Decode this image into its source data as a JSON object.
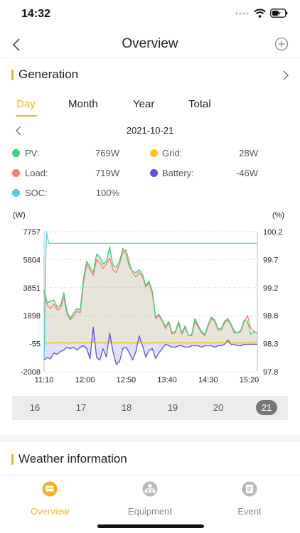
{
  "status_bar": {
    "time": "14:32"
  },
  "navbar": {
    "title": "Overview"
  },
  "generation": {
    "title": "Generation",
    "tabs": [
      "Day",
      "Month",
      "Year",
      "Total"
    ],
    "active_tab": "Day",
    "date": "2021-10-21",
    "legend": [
      {
        "label": "PV:",
        "value": "769W",
        "color": "#3ecf7a"
      },
      {
        "label": "Grid:",
        "value": "28W",
        "color": "#f5c518"
      },
      {
        "label": "Load:",
        "value": "719W",
        "color": "#ef7f7a"
      },
      {
        "label": "Battery:",
        "value": "-46W",
        "color": "#5b53e0"
      },
      {
        "label": "SOC:",
        "value": "100%",
        "color": "#4fd1d9"
      }
    ]
  },
  "chart_data": {
    "type": "line",
    "left_unit": "(W)",
    "right_unit": "(%)",
    "y_ticks_left": [
      "7757",
      "5804",
      "3851",
      "1898",
      "-55",
      "-2008"
    ],
    "y_ticks_right": [
      "100.2",
      "99.7",
      "99.2",
      "98.8",
      "98.3",
      "97.8"
    ],
    "ylim_left": [
      -2008,
      7757
    ],
    "ylim_right": [
      97.8,
      100.2
    ],
    "x_ticks": [
      "11:10",
      "12:00",
      "12:50",
      "13:40",
      "14:30",
      "15:20"
    ],
    "x_minutes_range": [
      "11:10",
      "15:30"
    ],
    "grid": true,
    "series": [
      {
        "name": "PV",
        "color": "#3ecf7a",
        "axis": "left",
        "x": [
          "11:10",
          "11:14",
          "11:18",
          "11:22",
          "11:26",
          "11:30",
          "11:34",
          "11:38",
          "11:42",
          "11:46",
          "11:50",
          "11:54",
          "11:58",
          "12:02",
          "12:06",
          "12:10",
          "12:14",
          "12:18",
          "12:22",
          "12:26",
          "12:30",
          "12:34",
          "12:38",
          "12:42",
          "12:46",
          "12:50",
          "12:54",
          "12:58",
          "13:02",
          "13:06",
          "13:10",
          "13:14",
          "13:18",
          "13:22",
          "13:26",
          "13:30",
          "13:34",
          "13:38",
          "13:42",
          "13:46",
          "13:50",
          "13:54",
          "13:58",
          "14:02",
          "14:06",
          "14:10",
          "14:14",
          "14:18",
          "14:22",
          "14:26",
          "14:30",
          "14:34",
          "14:38",
          "14:42",
          "14:46",
          "14:50",
          "14:54",
          "14:58",
          "15:02",
          "15:06",
          "15:10",
          "15:14",
          "15:18",
          "15:22",
          "15:26",
          "15:30"
        ],
        "values": [
          3700,
          2800,
          2900,
          3000,
          2500,
          2600,
          3500,
          2200,
          1700,
          2100,
          2400,
          2300,
          4500,
          5700,
          5300,
          4900,
          6200,
          6000,
          5500,
          5700,
          6700,
          5400,
          5300,
          5700,
          6600,
          6200,
          5300,
          5000,
          4900,
          5100,
          4800,
          4000,
          4300,
          3600,
          1800,
          2000,
          1600,
          1100,
          1500,
          700,
          800,
          1500,
          700,
          1200,
          500,
          600,
          1700,
          1200,
          800,
          600,
          1300,
          1800,
          1600,
          1000,
          1000,
          1500,
          1700,
          1300,
          800,
          700,
          900,
          1600,
          1500,
          600,
          800,
          700
        ]
      },
      {
        "name": "Load",
        "color": "#ef7f7a",
        "axis": "left",
        "x": [
          "11:10",
          "11:14",
          "11:18",
          "11:22",
          "11:26",
          "11:30",
          "11:34",
          "11:38",
          "11:42",
          "11:46",
          "11:50",
          "11:54",
          "11:58",
          "12:02",
          "12:06",
          "12:10",
          "12:14",
          "12:18",
          "12:22",
          "12:26",
          "12:30",
          "12:34",
          "12:38",
          "12:42",
          "12:46",
          "12:50",
          "12:54",
          "12:58",
          "13:02",
          "13:06",
          "13:10",
          "13:14",
          "13:18",
          "13:22",
          "13:26",
          "13:30",
          "13:34",
          "13:38",
          "13:42",
          "13:46",
          "13:50",
          "13:54",
          "13:58",
          "14:02",
          "14:06",
          "14:10",
          "14:14",
          "14:18",
          "14:22",
          "14:26",
          "14:30",
          "14:34",
          "14:38",
          "14:42",
          "14:46",
          "14:50",
          "14:54",
          "14:58",
          "15:02",
          "15:06",
          "15:10",
          "15:14",
          "15:18",
          "15:22",
          "15:26",
          "15:30"
        ],
        "values": [
          3500,
          2600,
          2400,
          2700,
          2300,
          2400,
          3200,
          2000,
          1600,
          1900,
          2200,
          2100,
          4200,
          5500,
          5100,
          4700,
          5800,
          5600,
          5200,
          5500,
          5900,
          5100,
          4900,
          5500,
          6300,
          6500,
          5600,
          4900,
          4600,
          4900,
          4600,
          3900,
          4200,
          3400,
          1700,
          1900,
          1500,
          1000,
          1400,
          600,
          700,
          1400,
          600,
          1100,
          500,
          500,
          1500,
          1100,
          700,
          500,
          1200,
          1700,
          1500,
          900,
          900,
          1400,
          1600,
          1200,
          700,
          700,
          800,
          1500,
          1900,
          1000,
          800,
          700
        ]
      },
      {
        "name": "Battery",
        "color": "#5b53e0",
        "axis": "left",
        "x": [
          "11:10",
          "11:14",
          "11:18",
          "11:22",
          "11:26",
          "11:30",
          "11:34",
          "11:38",
          "11:42",
          "11:46",
          "11:50",
          "11:54",
          "11:58",
          "12:02",
          "12:06",
          "12:10",
          "12:14",
          "12:18",
          "12:22",
          "12:26",
          "12:30",
          "12:34",
          "12:38",
          "12:42",
          "12:46",
          "12:50",
          "12:54",
          "12:58",
          "13:02",
          "13:06",
          "13:10",
          "13:14",
          "13:18",
          "13:22",
          "13:26",
          "13:30",
          "13:34",
          "13:38",
          "13:42",
          "13:46",
          "13:50",
          "13:54",
          "13:58",
          "14:02",
          "14:06",
          "14:10",
          "14:14",
          "14:18",
          "14:22",
          "14:26",
          "14:30",
          "14:34",
          "14:38",
          "14:42",
          "14:46",
          "14:50",
          "14:54",
          "14:58",
          "15:02",
          "15:06",
          "15:10",
          "15:14",
          "15:18",
          "15:22",
          "15:26",
          "15:30"
        ],
        "values": [
          -1200,
          -1000,
          -1100,
          -700,
          -800,
          -600,
          -500,
          -300,
          -400,
          -300,
          -500,
          -300,
          -200,
          -400,
          -1100,
          1100,
          -1000,
          -1200,
          -400,
          -1000,
          700,
          -600,
          -1500,
          -1300,
          -400,
          -300,
          -700,
          -1200,
          -600,
          500,
          -200,
          -1000,
          -500,
          -400,
          -1100,
          -700,
          -400,
          -100,
          -200,
          -300,
          -300,
          -200,
          -200,
          -300,
          -300,
          -200,
          -200,
          -200,
          -300,
          -200,
          -200,
          -200,
          -300,
          -200,
          -200,
          -100,
          200,
          -100,
          -100,
          -200,
          -200,
          -100,
          -100,
          -100,
          -100,
          -100
        ]
      },
      {
        "name": "Grid",
        "color": "#f5c518",
        "axis": "left",
        "x": [
          "11:10",
          "15:30"
        ],
        "values": [
          30,
          30
        ]
      },
      {
        "name": "SOC",
        "color": "#4fd1d9",
        "axis": "right",
        "x": [
          "11:10",
          "11:12",
          "11:13",
          "11:14",
          "11:16",
          "15:30"
        ],
        "values": [
          98.0,
          99.7,
          100.2,
          100.1,
          100.0,
          100.0
        ]
      }
    ]
  },
  "day_strip": {
    "days": [
      "16",
      "17",
      "18",
      "19",
      "20",
      "21"
    ],
    "active_day": "21"
  },
  "weather": {
    "title": "Weather information"
  },
  "tabbar": {
    "items": [
      {
        "label": "Overview",
        "icon": "overview-icon"
      },
      {
        "label": "Equipment",
        "icon": "equipment-icon"
      },
      {
        "label": "Event",
        "icon": "event-icon"
      }
    ],
    "active": "Overview"
  }
}
